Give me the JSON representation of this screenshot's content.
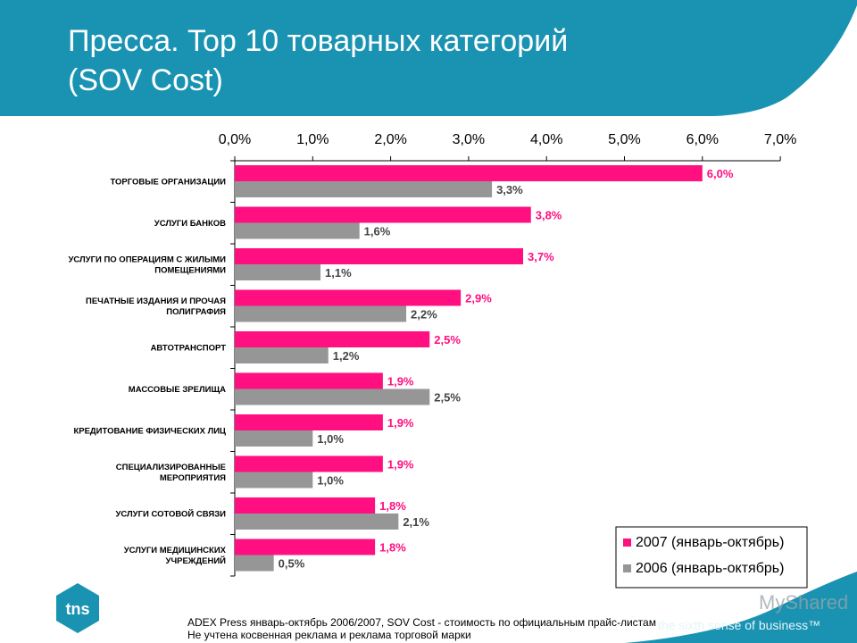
{
  "header": {
    "title_line1": "Пресса. Top 10 товарных категорий",
    "title_line2": "(SOV Cost)"
  },
  "colors": {
    "header_bg": "#1a93b3",
    "series_2007": "#ff0f80",
    "series_2006": "#969696",
    "label_2007": "#ff0f80",
    "label_2006": "#444444"
  },
  "chart_data": {
    "type": "bar",
    "orientation": "horizontal",
    "categories": [
      [
        "ТОРГОВЫЕ ОРГАНИЗАЦИИ"
      ],
      [
        "УСЛУГИ БАНКОВ"
      ],
      [
        "УСЛУГИ ПО ОПЕРАЦИЯМ С ЖИЛЫМИ",
        "ПОМЕЩЕНИЯМИ"
      ],
      [
        "ПЕЧАТНЫЕ ИЗДАНИЯ И ПРОЧАЯ",
        "ПОЛИГРАФИЯ"
      ],
      [
        "АВТОТРАНСПОРТ"
      ],
      [
        "МАССОВЫЕ ЗРЕЛИЩА"
      ],
      [
        "КРЕДИТОВАНИЕ ФИЗИЧЕСКИХ ЛИЦ"
      ],
      [
        "СПЕЦИАЛИЗИРОВАННЫЕ",
        "МЕРОПРИЯТИЯ"
      ],
      [
        "УСЛУГИ СОТОВОЙ СВЯЗИ"
      ],
      [
        "УСЛУГИ МЕДИЦИНСКИХ",
        "УЧРЕЖДЕНИЙ"
      ]
    ],
    "series": [
      {
        "name": "2007 (январь-октябрь)",
        "values": [
          6.0,
          3.8,
          3.7,
          2.9,
          2.5,
          1.9,
          1.9,
          1.9,
          1.8,
          1.8
        ],
        "labels": [
          "6,0%",
          "3,8%",
          "3,7%",
          "2,9%",
          "2,5%",
          "1,9%",
          "1,9%",
          "1,9%",
          "1,8%",
          "1,8%"
        ]
      },
      {
        "name": "2006 (январь-октябрь)",
        "values": [
          3.3,
          1.6,
          1.1,
          2.2,
          1.2,
          2.5,
          1.0,
          1.0,
          2.1,
          0.5
        ],
        "labels": [
          "3,3%",
          "1,6%",
          "1,1%",
          "2,2%",
          "1,2%",
          "2,5%",
          "1,0%",
          "1,0%",
          "2,1%",
          "0,5%"
        ]
      }
    ],
    "xlim": [
      0,
      7
    ],
    "ticks": [
      "0,0%",
      "1,0%",
      "2,0%",
      "3,0%",
      "4,0%",
      "5,0%",
      "6,0%",
      "7,0%"
    ],
    "axis_position": "top",
    "grid": false,
    "legend_position": "bottom-right"
  },
  "footer": {
    "line1": "ADEX Press январь-октябрь 2006/2007,   SOV Cost - стоимость по официальным прайс-листам",
    "line2": "Не учтена косвенная реклама и реклама торговой марки"
  },
  "branding": {
    "logo_text": "tns",
    "tagline": "the sixth sense of business™",
    "watermark": "MyShared"
  }
}
